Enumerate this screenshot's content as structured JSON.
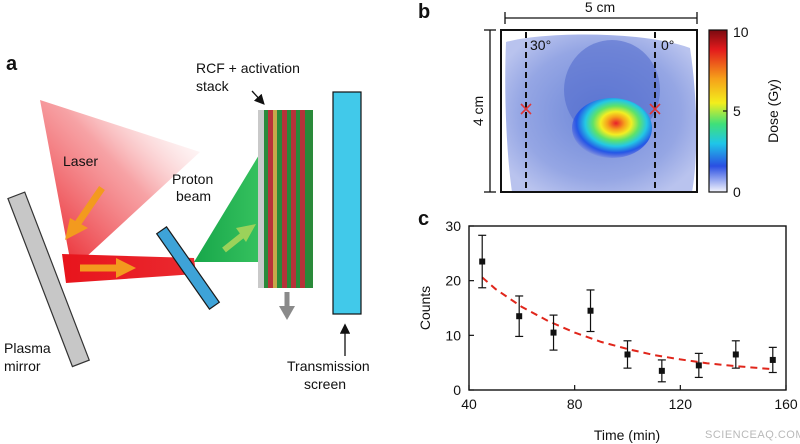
{
  "panels": {
    "a": "a",
    "b": "b",
    "c": "c"
  },
  "schematic": {
    "laser": "Laser",
    "proton_beam": [
      "Proton",
      "beam"
    ],
    "rcf_stack": [
      "RCF + activation",
      "stack"
    ],
    "plasma_mirror": [
      "Plasma",
      "mirror"
    ],
    "transmission_screen": [
      "Transmission",
      "screen"
    ]
  },
  "dose_map": {
    "width_label": "5 cm",
    "height_label": "4 cm",
    "angle_left": "30°",
    "angle_right": "0°",
    "colorbar_label": "Dose (Gy)",
    "colorbar_ticks": [
      "10",
      "5",
      "0"
    ],
    "colorbar_range": [
      0,
      10
    ]
  },
  "chart_data": {
    "type": "scatter",
    "xlabel": "Time (min)",
    "ylabel": "Counts",
    "xlim": [
      40,
      160
    ],
    "ylim": [
      0,
      30
    ],
    "xticks": [
      40,
      80,
      120,
      160
    ],
    "yticks": [
      0,
      10,
      20,
      30
    ],
    "grid": false,
    "series": [
      {
        "marker": "square",
        "color": "#111111",
        "points": [
          {
            "x": 45,
            "y": 23.5,
            "err": 4.8
          },
          {
            "x": 59,
            "y": 13.5,
            "err": 3.7
          },
          {
            "x": 72,
            "y": 10.5,
            "err": 3.2
          },
          {
            "x": 86,
            "y": 14.5,
            "err": 3.8
          },
          {
            "x": 100,
            "y": 6.5,
            "err": 2.5
          },
          {
            "x": 113,
            "y": 3.5,
            "err": 2.0
          },
          {
            "x": 127,
            "y": 4.5,
            "err": 2.2
          },
          {
            "x": 141,
            "y": 6.5,
            "err": 2.5
          },
          {
            "x": 155,
            "y": 5.5,
            "err": 2.3
          }
        ]
      },
      {
        "style": "dashed",
        "color": "#e0261b",
        "curve": [
          {
            "x": 45,
            "y": 20.6
          },
          {
            "x": 50,
            "y": 18.5
          },
          {
            "x": 60,
            "y": 15.2
          },
          {
            "x": 70,
            "y": 12.6
          },
          {
            "x": 80,
            "y": 10.5
          },
          {
            "x": 90,
            "y": 8.8
          },
          {
            "x": 100,
            "y": 7.5
          },
          {
            "x": 110,
            "y": 6.4
          },
          {
            "x": 120,
            "y": 5.6
          },
          {
            "x": 130,
            "y": 4.9
          },
          {
            "x": 140,
            "y": 4.4
          },
          {
            "x": 150,
            "y": 4.0
          },
          {
            "x": 155,
            "y": 3.8
          }
        ]
      }
    ]
  },
  "watermark": "SCIENCEAQ.COM"
}
